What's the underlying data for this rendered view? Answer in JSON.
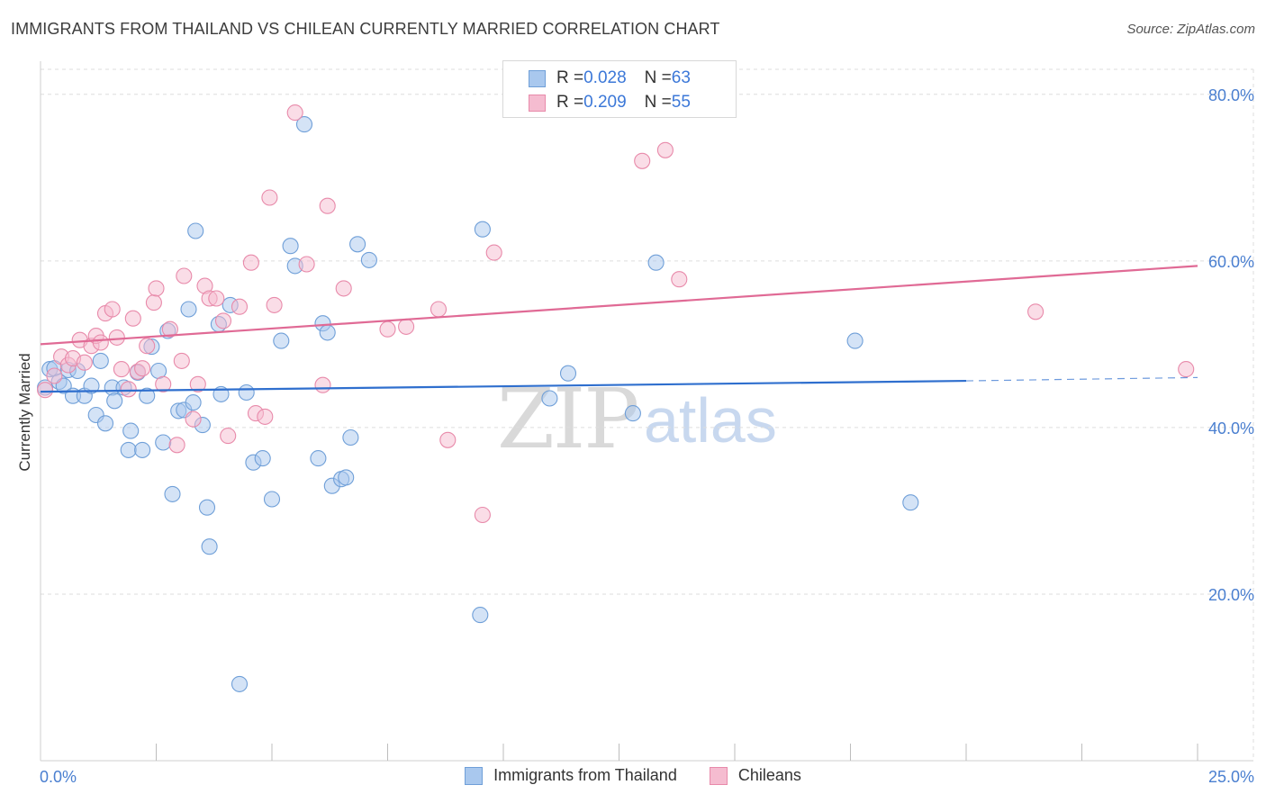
{
  "header": {
    "title": "IMMIGRANTS FROM THAILAND VS CHILEAN CURRENTLY MARRIED CORRELATION CHART",
    "source": "Source: ZipAtlas.com"
  },
  "watermark": {
    "zip": "ZIP",
    "atlas": "atlas"
  },
  "legend_top": {
    "rows": [
      {
        "r_label": "R = ",
        "r_value": "0.028",
        "n_label": "N = ",
        "n_value": "63"
      },
      {
        "r_label": "R = ",
        "r_value": "0.209",
        "n_label": "N = ",
        "n_value": "55"
      }
    ]
  },
  "legend_bottom": [
    {
      "label": "Immigrants from Thailand"
    },
    {
      "label": "Chileans"
    }
  ],
  "colors": {
    "blue_fill": "#a9c8ee",
    "blue_stroke": "#6f9fd8",
    "blue_line": "#2f6fce",
    "pink_fill": "#f5bcd0",
    "pink_stroke": "#e88aaa",
    "pink_line": "#e06a95",
    "grid": "#dddddd",
    "tick_text": "#4a7fd0"
  },
  "chart_data": {
    "type": "scatter",
    "title": "IMMIGRANTS FROM THAILAND VS CHILEAN CURRENTLY MARRIED CORRELATION CHART",
    "xlabel": "",
    "ylabel": "Currently Married",
    "xlim": [
      0,
      25
    ],
    "ylim": [
      0,
      83
    ],
    "x_tick_labels": [
      "0.0%",
      "25.0%"
    ],
    "y_ticks": [
      20,
      40,
      60,
      80
    ],
    "y_tick_labels": [
      "20.0%",
      "40.0%",
      "60.0%",
      "80.0%"
    ],
    "series": [
      {
        "name": "Immigrants from Thailand",
        "R": 0.028,
        "N": 63,
        "trend": {
          "x0": 0,
          "y0": 44.3,
          "x1": 20.0,
          "y1": 45.6,
          "dashed_to_x": 25,
          "dashed_to_y": 46.0
        },
        "points": [
          [
            0.1,
            44.8
          ],
          [
            0.2,
            47.0
          ],
          [
            0.3,
            47.1
          ],
          [
            0.4,
            45.5
          ],
          [
            0.5,
            45.0
          ],
          [
            0.6,
            46.9
          ],
          [
            0.7,
            43.8
          ],
          [
            0.8,
            46.8
          ],
          [
            0.95,
            43.8
          ],
          [
            1.1,
            45.0
          ],
          [
            1.2,
            41.5
          ],
          [
            1.3,
            48.0
          ],
          [
            1.4,
            40.5
          ],
          [
            1.55,
            44.8
          ],
          [
            1.6,
            43.2
          ],
          [
            1.8,
            44.8
          ],
          [
            1.9,
            37.3
          ],
          [
            1.95,
            39.6
          ],
          [
            2.1,
            46.6
          ],
          [
            2.2,
            37.3
          ],
          [
            2.3,
            43.8
          ],
          [
            2.4,
            49.7
          ],
          [
            2.55,
            46.8
          ],
          [
            2.65,
            38.2
          ],
          [
            2.75,
            51.6
          ],
          [
            2.85,
            32.0
          ],
          [
            2.98,
            42.0
          ],
          [
            3.1,
            42.1
          ],
          [
            3.2,
            54.2
          ],
          [
            3.3,
            43.0
          ],
          [
            3.35,
            63.6
          ],
          [
            3.5,
            40.3
          ],
          [
            3.6,
            30.4
          ],
          [
            3.65,
            25.7
          ],
          [
            3.85,
            52.4
          ],
          [
            3.9,
            44.0
          ],
          [
            4.1,
            54.7
          ],
          [
            4.3,
            9.2
          ],
          [
            4.45,
            44.2
          ],
          [
            4.6,
            35.8
          ],
          [
            4.8,
            36.3
          ],
          [
            5.0,
            31.4
          ],
          [
            5.2,
            50.4
          ],
          [
            5.4,
            61.8
          ],
          [
            5.5,
            59.4
          ],
          [
            5.7,
            76.4
          ],
          [
            6.0,
            36.3
          ],
          [
            6.1,
            52.5
          ],
          [
            6.2,
            51.4
          ],
          [
            6.3,
            33.0
          ],
          [
            6.5,
            33.8
          ],
          [
            6.6,
            34.0
          ],
          [
            6.7,
            38.8
          ],
          [
            6.85,
            62.0
          ],
          [
            7.1,
            60.1
          ],
          [
            9.5,
            17.5
          ],
          [
            9.55,
            63.8
          ],
          [
            11.0,
            43.5
          ],
          [
            11.4,
            46.5
          ],
          [
            12.8,
            41.7
          ],
          [
            13.3,
            59.8
          ],
          [
            17.6,
            50.4
          ],
          [
            18.8,
            31.0
          ]
        ]
      },
      {
        "name": "Chileans",
        "R": 0.209,
        "N": 55,
        "trend": {
          "x0": 0,
          "y0": 50.0,
          "x1": 25,
          "y1": 59.4
        },
        "points": [
          [
            0.1,
            44.5
          ],
          [
            0.3,
            46.2
          ],
          [
            0.45,
            48.5
          ],
          [
            0.6,
            47.5
          ],
          [
            0.7,
            48.3
          ],
          [
            0.85,
            50.5
          ],
          [
            0.95,
            47.8
          ],
          [
            1.1,
            49.8
          ],
          [
            1.2,
            51.0
          ],
          [
            1.3,
            50.2
          ],
          [
            1.4,
            53.7
          ],
          [
            1.55,
            54.2
          ],
          [
            1.65,
            50.8
          ],
          [
            1.75,
            47.0
          ],
          [
            1.9,
            44.6
          ],
          [
            2.0,
            53.1
          ],
          [
            2.1,
            46.7
          ],
          [
            2.2,
            47.1
          ],
          [
            2.3,
            49.8
          ],
          [
            2.45,
            55.0
          ],
          [
            2.5,
            56.7
          ],
          [
            2.65,
            45.2
          ],
          [
            2.8,
            51.8
          ],
          [
            2.95,
            37.9
          ],
          [
            3.05,
            48.0
          ],
          [
            3.1,
            58.2
          ],
          [
            3.3,
            41.0
          ],
          [
            3.4,
            45.2
          ],
          [
            3.55,
            57.0
          ],
          [
            3.65,
            55.5
          ],
          [
            3.8,
            55.5
          ],
          [
            3.95,
            52.8
          ],
          [
            4.05,
            39.0
          ],
          [
            4.3,
            54.5
          ],
          [
            4.55,
            59.8
          ],
          [
            4.65,
            41.7
          ],
          [
            4.85,
            41.3
          ],
          [
            4.95,
            67.6
          ],
          [
            5.05,
            54.7
          ],
          [
            5.5,
            77.8
          ],
          [
            5.75,
            59.6
          ],
          [
            6.1,
            45.1
          ],
          [
            6.2,
            66.6
          ],
          [
            6.55,
            56.7
          ],
          [
            7.5,
            51.8
          ],
          [
            7.9,
            52.1
          ],
          [
            8.6,
            54.2
          ],
          [
            8.8,
            38.5
          ],
          [
            9.55,
            29.5
          ],
          [
            9.8,
            61.0
          ],
          [
            13.0,
            72.0
          ],
          [
            13.5,
            73.3
          ],
          [
            13.8,
            57.8
          ],
          [
            21.5,
            53.9
          ],
          [
            24.75,
            47.0
          ]
        ]
      }
    ]
  }
}
